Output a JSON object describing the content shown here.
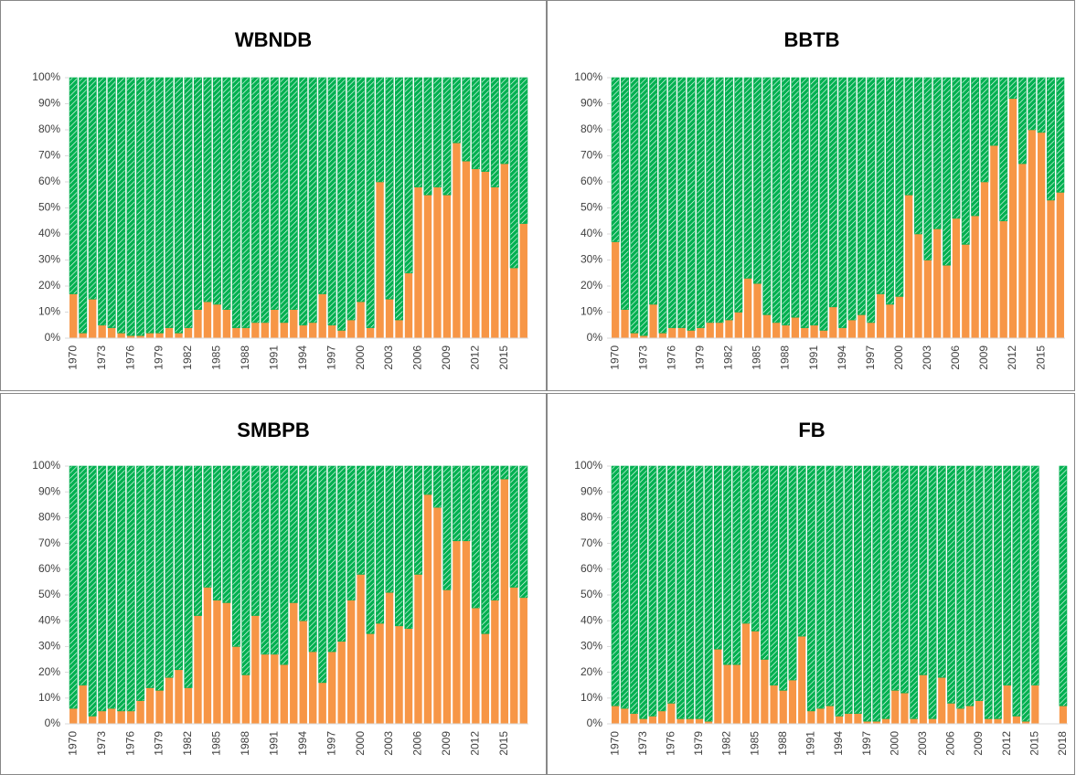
{
  "chart_data": [
    {
      "type": "bar",
      "stacked": true,
      "title": "WBNDB",
      "categories": [
        "1970",
        null,
        null,
        "1973",
        null,
        null,
        "1976",
        null,
        null,
        "1979",
        null,
        null,
        "1982",
        null,
        null,
        "1985",
        null,
        null,
        "1988",
        null,
        null,
        "1991",
        null,
        null,
        "1994",
        null,
        null,
        "1997",
        null,
        null,
        "2000",
        null,
        null,
        "2003",
        null,
        null,
        "2006",
        null,
        null,
        "2009",
        null,
        null,
        "2012",
        null,
        null,
        "2015",
        null,
        null
      ],
      "series": [
        {
          "color": "#f79646",
          "values": [
            17,
            2,
            15,
            5,
            4,
            2,
            1,
            1,
            2,
            2,
            4,
            2,
            4,
            11,
            14,
            13,
            11,
            4,
            4,
            6,
            6,
            11,
            6,
            11,
            5,
            6,
            17,
            5,
            3,
            7,
            14,
            4,
            60,
            15,
            7,
            25,
            58,
            55,
            58,
            55,
            75,
            68,
            65,
            64,
            58,
            67,
            27,
            44
          ]
        },
        {
          "color": "#00b050",
          "values": [
            83,
            98,
            85,
            95,
            96,
            98,
            99,
            99,
            98,
            98,
            96,
            98,
            96,
            89,
            86,
            87,
            89,
            96,
            96,
            94,
            94,
            89,
            94,
            89,
            95,
            94,
            83,
            95,
            97,
            93,
            86,
            96,
            40,
            85,
            93,
            75,
            42,
            45,
            42,
            45,
            25,
            32,
            35,
            36,
            42,
            33,
            73,
            56
          ]
        }
      ],
      "ylim": [
        0,
        100
      ],
      "yticks": [
        {
          "value": 0,
          "label": "0%"
        },
        {
          "value": 10,
          "label": "10%"
        },
        {
          "value": 20,
          "label": "20%"
        },
        {
          "value": 30,
          "label": "30%"
        },
        {
          "value": 40,
          "label": "40%"
        },
        {
          "value": 50,
          "label": "50%"
        },
        {
          "value": 60,
          "label": "60%"
        },
        {
          "value": 70,
          "label": "70%"
        },
        {
          "value": 80,
          "label": "80%"
        },
        {
          "value": 90,
          "label": "90%"
        },
        {
          "value": 100,
          "label": "100%"
        }
      ]
    },
    {
      "type": "bar",
      "stacked": true,
      "title": "BBTB",
      "categories": [
        "1970",
        null,
        null,
        "1973",
        null,
        null,
        "1976",
        null,
        null,
        "1979",
        null,
        null,
        "1982",
        null,
        null,
        "1985",
        null,
        null,
        "1988",
        null,
        null,
        "1991",
        null,
        null,
        "1994",
        null,
        null,
        "1997",
        null,
        null,
        "2000",
        null,
        null,
        "2003",
        null,
        null,
        "2006",
        null,
        null,
        "2009",
        null,
        null,
        "2012",
        null,
        null,
        "2015",
        null,
        null
      ],
      "series": [
        {
          "color": "#f79646",
          "values": [
            37,
            11,
            2,
            1,
            13,
            2,
            4,
            4,
            3,
            4,
            6,
            6,
            7,
            10,
            23,
            21,
            9,
            6,
            5,
            8,
            4,
            5,
            3,
            12,
            4,
            7,
            9,
            6,
            17,
            13,
            16,
            55,
            40,
            30,
            42,
            28,
            46,
            36,
            47,
            60,
            74,
            45,
            92,
            67,
            80,
            79,
            53,
            56
          ]
        },
        {
          "color": "#00b050",
          "values": [
            63,
            89,
            98,
            99,
            87,
            98,
            96,
            96,
            97,
            96,
            94,
            94,
            93,
            90,
            77,
            79,
            91,
            94,
            95,
            92,
            96,
            95,
            97,
            88,
            96,
            93,
            91,
            94,
            83,
            87,
            84,
            45,
            60,
            70,
            58,
            72,
            54,
            64,
            53,
            40,
            26,
            55,
            8,
            33,
            20,
            21,
            47,
            44
          ]
        }
      ],
      "ylim": [
        0,
        100
      ],
      "yticks": [
        {
          "value": 0,
          "label": "0%"
        },
        {
          "value": 10,
          "label": "10%"
        },
        {
          "value": 20,
          "label": "20%"
        },
        {
          "value": 30,
          "label": "30%"
        },
        {
          "value": 40,
          "label": "40%"
        },
        {
          "value": 50,
          "label": "50%"
        },
        {
          "value": 60,
          "label": "60%"
        },
        {
          "value": 70,
          "label": "70%"
        },
        {
          "value": 80,
          "label": "80%"
        },
        {
          "value": 90,
          "label": "90%"
        },
        {
          "value": 100,
          "label": "100%"
        }
      ]
    },
    {
      "type": "bar",
      "stacked": true,
      "title": "SMBPB",
      "categories": [
        "1970",
        null,
        null,
        "1973",
        null,
        null,
        "1976",
        null,
        null,
        "1979",
        null,
        null,
        "1982",
        null,
        null,
        "1985",
        null,
        null,
        "1988",
        null,
        null,
        "1991",
        null,
        null,
        "1994",
        null,
        null,
        "1997",
        null,
        null,
        "2000",
        null,
        null,
        "2003",
        null,
        null,
        "2006",
        null,
        null,
        "2009",
        null,
        null,
        "2012",
        null,
        null,
        "2015",
        null,
        null
      ],
      "series": [
        {
          "color": "#f79646",
          "values": [
            6,
            15,
            3,
            5,
            6,
            5,
            5,
            9,
            14,
            13,
            18,
            21,
            14,
            42,
            53,
            48,
            47,
            30,
            19,
            42,
            27,
            27,
            23,
            47,
            40,
            28,
            16,
            28,
            32,
            48,
            58,
            35,
            39,
            51,
            38,
            37,
            58,
            89,
            84,
            52,
            71,
            71,
            45,
            35,
            48,
            95,
            53,
            49
          ]
        },
        {
          "color": "#00b050",
          "values": [
            94,
            85,
            97,
            95,
            94,
            95,
            95,
            91,
            86,
            87,
            82,
            79,
            86,
            58,
            47,
            52,
            53,
            70,
            81,
            58,
            73,
            73,
            77,
            53,
            60,
            72,
            84,
            72,
            68,
            52,
            42,
            65,
            61,
            49,
            62,
            63,
            42,
            11,
            16,
            48,
            29,
            29,
            55,
            65,
            52,
            5,
            47,
            51
          ]
        }
      ],
      "ylim": [
        0,
        100
      ],
      "yticks": [
        {
          "value": 0,
          "label": "0%"
        },
        {
          "value": 10,
          "label": "10%"
        },
        {
          "value": 20,
          "label": "20%"
        },
        {
          "value": 30,
          "label": "30%"
        },
        {
          "value": 40,
          "label": "40%"
        },
        {
          "value": 50,
          "label": "50%"
        },
        {
          "value": 60,
          "label": "60%"
        },
        {
          "value": 70,
          "label": "70%"
        },
        {
          "value": 80,
          "label": "80%"
        },
        {
          "value": 90,
          "label": "90%"
        },
        {
          "value": 100,
          "label": "100%"
        }
      ]
    },
    {
      "type": "bar",
      "stacked": true,
      "title": "FB",
      "categories": [
        "1970",
        null,
        null,
        "1973",
        null,
        null,
        "1976",
        null,
        null,
        "1979",
        null,
        null,
        "1982",
        null,
        null,
        "1985",
        null,
        null,
        "1988",
        null,
        null,
        "1991",
        null,
        null,
        "1994",
        null,
        null,
        "1997",
        null,
        null,
        "2000",
        null,
        null,
        "2003",
        null,
        null,
        "2006",
        null,
        null,
        "2009",
        null,
        null,
        "2012",
        null,
        null,
        "2015",
        null,
        null,
        "2018"
      ],
      "series": [
        {
          "color": "#f79646",
          "values": [
            7,
            6,
            4,
            2,
            3,
            5,
            8,
            2,
            2,
            2,
            1,
            29,
            23,
            23,
            39,
            36,
            25,
            15,
            13,
            17,
            34,
            5,
            6,
            7,
            3,
            4,
            4,
            1,
            1,
            2,
            13,
            12,
            2,
            19,
            2,
            18,
            8,
            6,
            7,
            9,
            2,
            2,
            15,
            3,
            1,
            15,
            null,
            null,
            7
          ]
        },
        {
          "color": "#00b050",
          "values": [
            93,
            94,
            96,
            98,
            97,
            95,
            92,
            98,
            98,
            98,
            99,
            71,
            77,
            77,
            61,
            64,
            75,
            85,
            87,
            83,
            66,
            95,
            94,
            93,
            97,
            96,
            96,
            99,
            99,
            98,
            87,
            88,
            98,
            81,
            98,
            82,
            92,
            94,
            93,
            91,
            98,
            98,
            85,
            97,
            99,
            85,
            null,
            null,
            93
          ]
        }
      ],
      "ylim": [
        0,
        100
      ],
      "yticks": [
        {
          "value": 0,
          "label": "0%"
        },
        {
          "value": 10,
          "label": "10%"
        },
        {
          "value": 20,
          "label": "20%"
        },
        {
          "value": 30,
          "label": "30%"
        },
        {
          "value": 40,
          "label": "40%"
        },
        {
          "value": 50,
          "label": "50%"
        },
        {
          "value": 60,
          "label": "60%"
        },
        {
          "value": 70,
          "label": "70%"
        },
        {
          "value": 80,
          "label": "80%"
        },
        {
          "value": 90,
          "label": "90%"
        },
        {
          "value": 100,
          "label": "100%"
        }
      ]
    }
  ]
}
